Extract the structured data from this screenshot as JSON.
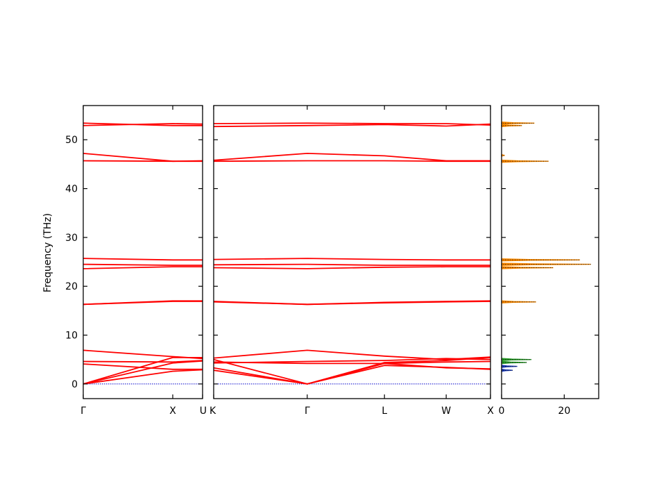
{
  "chart_data": {
    "type": "line",
    "ylabel": "Frequency (THz)",
    "ylim": [
      -3,
      57
    ],
    "yticks": [
      0,
      10,
      20,
      30,
      40,
      50
    ],
    "colors": {
      "bands": "#ff0000",
      "zero_line": "#0000cc",
      "dos_orange": "#ff8c00",
      "dos_green": "#2ca02c",
      "dos_blue": "#1f3fbf",
      "dos_dots": "#000000"
    },
    "panels": [
      {
        "id": "band-left",
        "kpoints": [
          {
            "label": "Γ",
            "pos": 0.0
          },
          {
            "label": "X",
            "pos": 0.75
          },
          {
            "label": "U",
            "pos": 1.0
          }
        ],
        "bands": [
          {
            "x": [
              0,
              0.75,
              1.0
            ],
            "y": [
              0,
              5.4,
              5.4
            ]
          },
          {
            "x": [
              0,
              0.75,
              1.0
            ],
            "y": [
              0,
              4.3,
              4.7
            ]
          },
          {
            "x": [
              0,
              0.75,
              1.0
            ],
            "y": [
              0,
              2.6,
              2.9
            ]
          },
          {
            "x": [
              0,
              0.75,
              1.0
            ],
            "y": [
              4.1,
              3.0,
              3.0
            ]
          },
          {
            "x": [
              0,
              0.75,
              1.0
            ],
            "y": [
              4.6,
              4.5,
              4.8
            ]
          },
          {
            "x": [
              0,
              0.75,
              1.0
            ],
            "y": [
              6.9,
              5.6,
              5.2
            ]
          },
          {
            "x": [
              0,
              0.75,
              1.0
            ],
            "y": [
              16.3,
              17.0,
              17.0
            ]
          },
          {
            "x": [
              0,
              0.75,
              1.0
            ],
            "y": [
              16.3,
              16.9,
              16.9
            ]
          },
          {
            "x": [
              0,
              0.75,
              1.0
            ],
            "y": [
              23.6,
              24.0,
              24.0
            ]
          },
          {
            "x": [
              0,
              0.75,
              1.0
            ],
            "y": [
              24.5,
              24.3,
              24.3
            ]
          },
          {
            "x": [
              0,
              0.75,
              1.0
            ],
            "y": [
              25.7,
              25.4,
              25.4
            ]
          },
          {
            "x": [
              0,
              0.75,
              1.0
            ],
            "y": [
              45.7,
              45.6,
              45.6
            ]
          },
          {
            "x": [
              0,
              0.75,
              1.0
            ],
            "y": [
              47.2,
              45.6,
              45.7
            ]
          },
          {
            "x": [
              0,
              0.75,
              1.0
            ],
            "y": [
              52.9,
              53.3,
              53.2
            ]
          },
          {
            "x": [
              0,
              0.75,
              1.0
            ],
            "y": [
              53.4,
              52.9,
              52.9
            ]
          }
        ]
      },
      {
        "id": "band-right",
        "kpoints": [
          {
            "label": "K",
            "pos": 0.0
          },
          {
            "label": "Γ",
            "pos": 0.338
          },
          {
            "label": "L",
            "pos": 0.617
          },
          {
            "label": "W",
            "pos": 0.84
          },
          {
            "label": "X",
            "pos": 1.0
          }
        ],
        "bands": [
          {
            "x": [
              0,
              0.338,
              0.617,
              0.84,
              1.0
            ],
            "y": [
              2.8,
              0,
              3.8,
              3.4,
              3.0
            ]
          },
          {
            "x": [
              0,
              0.338,
              0.617,
              0.84,
              1.0
            ],
            "y": [
              3.3,
              0,
              4.2,
              4.5,
              4.6
            ]
          },
          {
            "x": [
              0,
              0.338,
              0.617,
              0.84,
              1.0
            ],
            "y": [
              5.0,
              0,
              4.4,
              4.8,
              5.4
            ]
          },
          {
            "x": [
              0,
              0.338,
              0.617,
              0.84,
              1.0
            ],
            "y": [
              4.5,
              4.2,
              4.2,
              3.3,
              3.1
            ]
          },
          {
            "x": [
              0,
              0.338,
              0.617,
              0.84,
              1.0
            ],
            "y": [
              4.3,
              4.6,
              4.8,
              5.2,
              5.0
            ]
          },
          {
            "x": [
              0,
              0.338,
              0.617,
              0.84,
              1.0
            ],
            "y": [
              5.3,
              6.9,
              5.7,
              5.0,
              5.5
            ]
          },
          {
            "x": [
              0,
              0.338,
              0.617,
              0.84,
              1.0
            ],
            "y": [
              16.9,
              16.3,
              16.7,
              16.9,
              17.0
            ]
          },
          {
            "x": [
              0,
              0.338,
              0.617,
              0.84,
              1.0
            ],
            "y": [
              16.8,
              16.3,
              16.6,
              16.8,
              16.9
            ]
          },
          {
            "x": [
              0,
              0.338,
              0.617,
              0.84,
              1.0
            ],
            "y": [
              23.8,
              23.6,
              23.9,
              24.0,
              24.0
            ]
          },
          {
            "x": [
              0,
              0.338,
              0.617,
              0.84,
              1.0
            ],
            "y": [
              24.4,
              24.5,
              24.3,
              24.3,
              24.3
            ]
          },
          {
            "x": [
              0,
              0.338,
              0.617,
              0.84,
              1.0
            ],
            "y": [
              25.5,
              25.7,
              25.5,
              25.4,
              25.4
            ]
          },
          {
            "x": [
              0,
              0.338,
              0.617,
              0.84,
              1.0
            ],
            "y": [
              45.6,
              45.7,
              45.7,
              45.6,
              45.6
            ]
          },
          {
            "x": [
              0,
              0.338,
              0.617,
              0.84,
              1.0
            ],
            "y": [
              45.8,
              47.2,
              46.7,
              45.7,
              45.7
            ]
          },
          {
            "x": [
              0,
              0.338,
              0.617,
              0.84,
              1.0
            ],
            "y": [
              52.7,
              52.9,
              53.1,
              52.8,
              53.2
            ]
          },
          {
            "x": [
              0,
              0.338,
              0.617,
              0.84,
              1.0
            ],
            "y": [
              53.3,
              53.4,
              53.3,
              53.3,
              53.0
            ]
          }
        ]
      },
      {
        "id": "dos",
        "xlim": [
          0,
          31
        ],
        "xticks": [
          0,
          20
        ],
        "peaks": [
          {
            "freq": 2.8,
            "height": 3.5,
            "color": "#1f3fbf"
          },
          {
            "freq": 3.6,
            "height": 5.0,
            "color": "#1f3fbf"
          },
          {
            "freq": 4.4,
            "height": 8.0,
            "color": "#2ca02c"
          },
          {
            "freq": 5.0,
            "height": 9.5,
            "color": "#2ca02c"
          },
          {
            "freq": 16.8,
            "height": 11.0,
            "color": "#ff8c00"
          },
          {
            "freq": 23.8,
            "height": 16.5,
            "color": "#ff8c00"
          },
          {
            "freq": 24.5,
            "height": 28.5,
            "color": "#ff8c00"
          },
          {
            "freq": 25.4,
            "height": 25.0,
            "color": "#ff8c00"
          },
          {
            "freq": 45.6,
            "height": 15.0,
            "color": "#ff8c00"
          },
          {
            "freq": 46.8,
            "height": 1.0,
            "color": "#ff8c00"
          },
          {
            "freq": 52.9,
            "height": 6.5,
            "color": "#ff8c00"
          },
          {
            "freq": 53.4,
            "height": 10.5,
            "color": "#ff8c00"
          }
        ]
      }
    ]
  }
}
